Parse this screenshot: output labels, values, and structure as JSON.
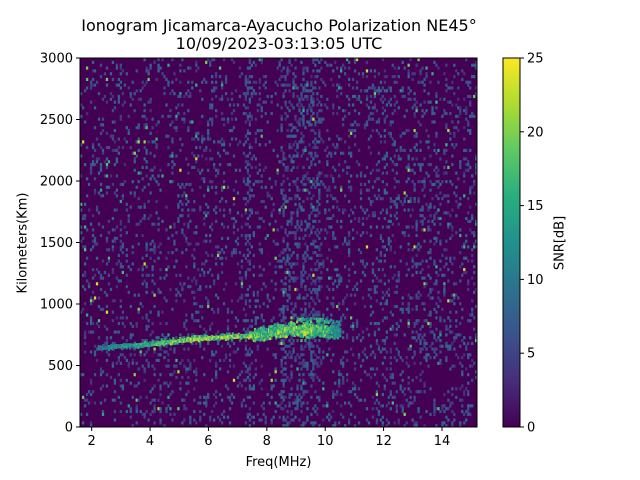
{
  "chart_data": {
    "type": "heatmap",
    "title": "Ionogram Jicamarca-Ayacucho Polarization NE45°",
    "subtitle": "10/09/2023-03:13:05 UTC",
    "xlabel": "Freq(MHz)",
    "ylabel": "Kilometers(Km)",
    "xlim": [
      1.6,
      15.2
    ],
    "ylim": [
      0,
      3000
    ],
    "xticks": [
      2,
      4,
      6,
      8,
      10,
      12,
      14
    ],
    "yticks": [
      0,
      500,
      1000,
      1500,
      2000,
      2500,
      3000
    ],
    "colorbar": {
      "label": "SNR[dB]",
      "range": [
        0,
        25
      ],
      "ticks": [
        0,
        5,
        10,
        15,
        20,
        25
      ],
      "colormap": "viridis"
    },
    "background_color": "#440154",
    "grid": false,
    "echo_trace": {
      "description_points_freq_mhz": [
        2.2,
        3.0,
        4.0,
        5.0,
        6.0,
        7.0,
        7.5,
        8.0,
        8.5,
        9.0,
        9.5,
        10.0,
        10.5
      ],
      "virtual_height_km": [
        640,
        655,
        670,
        700,
        720,
        735,
        740,
        755,
        775,
        790,
        790,
        785,
        775
      ],
      "snr_db": [
        12,
        16,
        20,
        24,
        25,
        25,
        24,
        23,
        25,
        25,
        24,
        22,
        16
      ]
    },
    "interference_bands_freq_mhz": [
      7.35,
      8.6,
      9.0,
      9.3,
      9.6,
      9.75
    ]
  }
}
